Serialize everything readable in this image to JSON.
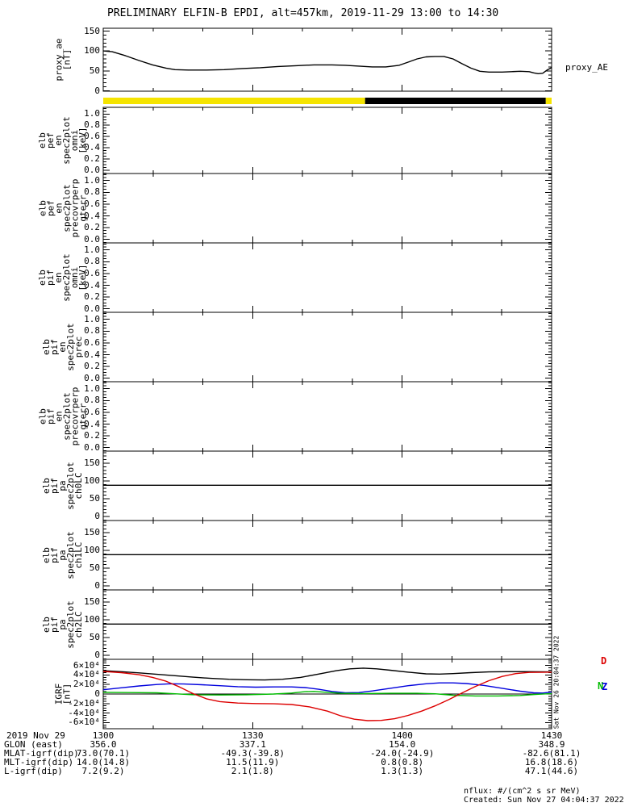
{
  "title": "PRELIMINARY ELFIN-B EPDI, alt=457km, 2019-11-29 13:00 to 14:30",
  "side_stamp": "Sat Nov 26 20:04:37 2022",
  "footer": {
    "nflux_units": "nflux: #/(cm^2 s sr MeV)",
    "created": "Created: Sun Nov 27 04:04:37 2022"
  },
  "colors": {
    "black": "#000000",
    "red": "#dd0000",
    "green": "#00bb00",
    "blue": "#0000dd",
    "yellow": "#f5e400",
    "background": "#ffffff"
  },
  "xaxis": {
    "date_label": "2019 Nov 29",
    "tick_labels": [
      "1300",
      "1330",
      "1400",
      "1430"
    ],
    "minor_tick_minutes": 10,
    "major_tick_minutes": 30
  },
  "bottom_rows": [
    {
      "label": "GLON (east)",
      "values": [
        "356.0",
        "337.1",
        "154.0",
        "348.9"
      ]
    },
    {
      "label": "MLAT-igrf(dip)",
      "values": [
        "73.0(70.1)",
        "-49.3(-39.8)",
        "-24.0(-24.9)",
        "-82.6(81.1)"
      ]
    },
    {
      "label": "MLT-igrf(dip)",
      "values": [
        "14.0(14.8)",
        "11.5(11.9)",
        "0.8(0.8)",
        "16.8(18.6)"
      ]
    },
    {
      "label": "L-igrf(dip)",
      "values": [
        "7.2(9.2)",
        "2.1(1.8)",
        "1.3(1.3)",
        "47.1(44.6)"
      ]
    }
  ],
  "chart_data": [
    {
      "type": "line",
      "name": "proxy_AE",
      "ylabel_lines": [
        "proxy_ae",
        "[nT]"
      ],
      "right_label": "proxy_AE",
      "ylim": [
        -1,
        157
      ],
      "yticks": [
        0,
        50,
        100,
        150
      ],
      "ytick_labels": [
        "0",
        "50",
        "100",
        "150"
      ],
      "minor_step": 10,
      "series": [
        {
          "name": "proxy_AE",
          "color": "#000000",
          "points": [
            [
              0,
              100
            ],
            [
              0.02,
              98
            ],
            [
              0.05,
              88
            ],
            [
              0.08,
              76
            ],
            [
              0.11,
              65
            ],
            [
              0.14,
              57
            ],
            [
              0.16,
              53
            ],
            [
              0.19,
              52
            ],
            [
              0.23,
              52
            ],
            [
              0.27,
              53
            ],
            [
              0.31,
              56
            ],
            [
              0.35,
              58
            ],
            [
              0.39,
              61
            ],
            [
              0.43,
              63
            ],
            [
              0.47,
              65
            ],
            [
              0.51,
              65
            ],
            [
              0.54,
              64
            ],
            [
              0.57,
              62
            ],
            [
              0.6,
              60
            ],
            [
              0.63,
              60
            ],
            [
              0.66,
              64
            ],
            [
              0.68,
              72
            ],
            [
              0.7,
              80
            ],
            [
              0.72,
              85
            ],
            [
              0.74,
              86
            ],
            [
              0.76,
              86
            ],
            [
              0.78,
              80
            ],
            [
              0.8,
              68
            ],
            [
              0.82,
              57
            ],
            [
              0.84,
              49
            ],
            [
              0.86,
              47
            ],
            [
              0.89,
              47
            ],
            [
              0.91,
              48
            ],
            [
              0.93,
              49
            ],
            [
              0.95,
              48
            ],
            [
              0.96,
              45
            ],
            [
              0.97,
              43
            ],
            [
              0.98,
              44
            ],
            [
              0.99,
              52
            ],
            [
              1,
              58
            ]
          ]
        }
      ]
    },
    {
      "type": "strip",
      "name": "sunlight-flag-bar",
      "segments": [
        {
          "from": 0.0,
          "to": 0.584,
          "color": "#f5e400",
          "meaning": "yellow"
        },
        {
          "from": 0.584,
          "to": 0.987,
          "color": "#000000",
          "meaning": "black"
        },
        {
          "from": 0.987,
          "to": 1.0,
          "color": "#f5e400",
          "meaning": "yellow"
        }
      ]
    },
    {
      "type": "panel",
      "name": "elb_pef_en_spec2plot_omni",
      "ylabel_lines": [
        "elb",
        "pef",
        "en",
        "spec2plot",
        "omni",
        "[keV]"
      ],
      "ylim": [
        -0.06,
        1.12
      ],
      "yticks": [
        0,
        0.2,
        0.4,
        0.6,
        0.8,
        1.0
      ],
      "ytick_labels": [
        "0.0",
        "0.2",
        "0.4",
        "0.6",
        "0.8",
        "1.0"
      ],
      "minor_step": 0.05,
      "series": []
    },
    {
      "type": "panel",
      "name": "elb_pef_en_spec2plot_precovrperp_gterr",
      "ylabel_lines": [
        "elb",
        "pef",
        "en",
        "spec2plot",
        "precovrperp",
        "gterr"
      ],
      "ylim": [
        -0.06,
        1.12
      ],
      "yticks": [
        0,
        0.2,
        0.4,
        0.6,
        0.8,
        1.0
      ],
      "ytick_labels": [
        "0.0",
        "0.2",
        "0.4",
        "0.6",
        "0.8",
        "1.0"
      ],
      "minor_step": 0.05,
      "series": []
    },
    {
      "type": "panel",
      "name": "elb_pif_en_spec2plot_omni",
      "ylabel_lines": [
        "elb",
        "pif",
        "en",
        "spec2plot",
        "omni",
        "[keV]"
      ],
      "ylim": [
        -0.06,
        1.12
      ],
      "yticks": [
        0,
        0.2,
        0.4,
        0.6,
        0.8,
        1.0
      ],
      "ytick_labels": [
        "0.0",
        "0.2",
        "0.4",
        "0.6",
        "0.8",
        "1.0"
      ],
      "minor_step": 0.05,
      "series": []
    },
    {
      "type": "panel",
      "name": "elb_pif_en_spec2plot_prec",
      "ylabel_lines": [
        "elb",
        "pif",
        "en",
        "spec2plot",
        "prec"
      ],
      "ylim": [
        -0.06,
        1.12
      ],
      "yticks": [
        0,
        0.2,
        0.4,
        0.6,
        0.8,
        1.0
      ],
      "ytick_labels": [
        "0.0",
        "0.2",
        "0.4",
        "0.6",
        "0.8",
        "1.0"
      ],
      "minor_step": 0.05,
      "series": []
    },
    {
      "type": "panel",
      "name": "elb_pif_en_spec2plot_precovrperp_gterr",
      "ylabel_lines": [
        "elb",
        "pif",
        "en",
        "spec2plot",
        "precovrperp",
        "gterr"
      ],
      "ylim": [
        -0.06,
        1.12
      ],
      "yticks": [
        0,
        0.2,
        0.4,
        0.6,
        0.8,
        1.0
      ],
      "ytick_labels": [
        "0.0",
        "0.2",
        "0.4",
        "0.6",
        "0.8",
        "1.0"
      ],
      "minor_step": 0.05,
      "series": []
    },
    {
      "type": "line",
      "name": "elb_pif_pa_spec2plot_ch0LC",
      "ylabel_lines": [
        "elb",
        "pif",
        "pa",
        "spec2plot",
        "ch0LC"
      ],
      "ylim": [
        -11,
        184
      ],
      "yticks": [
        0,
        50,
        100,
        150
      ],
      "ytick_labels": [
        "0",
        "50",
        "100",
        "150"
      ],
      "minor_step": 10,
      "series": [
        {
          "name": "loss-cone-line",
          "color": "#000000",
          "points": [
            [
              0,
              88
            ],
            [
              1,
              88
            ]
          ]
        }
      ]
    },
    {
      "type": "line",
      "name": "elb_pif_pa_spec2plot_ch1LC",
      "ylabel_lines": [
        "elb",
        "pif",
        "pa",
        "spec2plot",
        "ch1LC"
      ],
      "ylim": [
        -11,
        184
      ],
      "yticks": [
        0,
        50,
        100,
        150
      ],
      "ytick_labels": [
        "0",
        "50",
        "100",
        "150"
      ],
      "minor_step": 10,
      "series": [
        {
          "name": "loss-cone-line",
          "color": "#000000",
          "points": [
            [
              0,
              88
            ],
            [
              1,
              88
            ]
          ]
        }
      ]
    },
    {
      "type": "line",
      "name": "elb_pif_pa_spec2plot_ch2LC",
      "ylabel_lines": [
        "elb",
        "pif",
        "pa",
        "spec2plot",
        "ch2LC"
      ],
      "ylim": [
        -11,
        184
      ],
      "yticks": [
        0,
        50,
        100,
        150
      ],
      "ytick_labels": [
        "0",
        "50",
        "100",
        "150"
      ],
      "minor_step": 10,
      "series": [
        {
          "name": "loss-cone-line",
          "color": "#000000",
          "points": [
            [
              0,
              88
            ],
            [
              1,
              88
            ]
          ]
        }
      ]
    },
    {
      "type": "line",
      "name": "IGRF",
      "ylabel_lines": [
        "IGRF",
        "[nT]"
      ],
      "ylim": [
        -7.3,
        7.3
      ],
      "yticks": [
        -6,
        -4,
        -2,
        0,
        2,
        4,
        6
      ],
      "ytick_labels": [
        "-6×10⁴",
        "-4×10⁴",
        "-2×10⁴",
        "0",
        "2×10⁴",
        "4×10⁴",
        "6×10⁴"
      ],
      "minor_step": 0.5,
      "zero_line": true,
      "units_scale": "1e4 nT",
      "end_labels": [
        {
          "text": "D",
          "color": "#dd0000"
        },
        {
          "text": "N",
          "color": "#00bb00"
        },
        {
          "text": "Z",
          "color": "#0000dd"
        }
      ],
      "series": [
        {
          "name": "B-total",
          "color": "#000000",
          "points": [
            [
              0,
              4.9
            ],
            [
              0.04,
              4.7
            ],
            [
              0.08,
              4.45
            ],
            [
              0.12,
              4.15
            ],
            [
              0.16,
              3.85
            ],
            [
              0.2,
              3.55
            ],
            [
              0.24,
              3.3
            ],
            [
              0.28,
              3.1
            ],
            [
              0.32,
              3.0
            ],
            [
              0.36,
              2.95
            ],
            [
              0.4,
              3.1
            ],
            [
              0.44,
              3.5
            ],
            [
              0.48,
              4.2
            ],
            [
              0.52,
              4.9
            ],
            [
              0.55,
              5.3
            ],
            [
              0.58,
              5.45
            ],
            [
              0.61,
              5.3
            ],
            [
              0.64,
              5.0
            ],
            [
              0.68,
              4.6
            ],
            [
              0.72,
              4.25
            ],
            [
              0.75,
              4.2
            ],
            [
              0.78,
              4.3
            ],
            [
              0.82,
              4.5
            ],
            [
              0.86,
              4.65
            ],
            [
              0.9,
              4.7
            ],
            [
              0.95,
              4.7
            ],
            [
              1,
              4.65
            ]
          ]
        },
        {
          "name": "B-Z",
          "color": "#0000dd",
          "points": [
            [
              0,
              0.9
            ],
            [
              0.04,
              1.3
            ],
            [
              0.08,
              1.7
            ],
            [
              0.12,
              2.0
            ],
            [
              0.15,
              2.15
            ],
            [
              0.18,
              2.1
            ],
            [
              0.22,
              1.95
            ],
            [
              0.26,
              1.75
            ],
            [
              0.3,
              1.55
            ],
            [
              0.34,
              1.45
            ],
            [
              0.38,
              1.5
            ],
            [
              0.42,
              1.5
            ],
            [
              0.45,
              1.35
            ],
            [
              0.48,
              1.0
            ],
            [
              0.51,
              0.55
            ],
            [
              0.54,
              0.25
            ],
            [
              0.57,
              0.3
            ],
            [
              0.6,
              0.65
            ],
            [
              0.64,
              1.2
            ],
            [
              0.68,
              1.75
            ],
            [
              0.72,
              2.15
            ],
            [
              0.75,
              2.35
            ],
            [
              0.78,
              2.35
            ],
            [
              0.81,
              2.2
            ],
            [
              0.85,
              1.8
            ],
            [
              0.89,
              1.2
            ],
            [
              0.93,
              0.6
            ],
            [
              0.96,
              0.25
            ],
            [
              0.98,
              0.2
            ],
            [
              1,
              0.4
            ]
          ]
        },
        {
          "name": "B-N",
          "color": "#00bb00",
          "points": [
            [
              0,
              0.35
            ],
            [
              0.06,
              0.3
            ],
            [
              0.12,
              0.25
            ],
            [
              0.16,
              0.05
            ],
            [
              0.2,
              -0.15
            ],
            [
              0.26,
              -0.2
            ],
            [
              0.32,
              -0.15
            ],
            [
              0.38,
              0.0
            ],
            [
              0.42,
              0.2
            ],
            [
              0.45,
              0.5
            ],
            [
              0.47,
              0.55
            ],
            [
              0.5,
              0.35
            ],
            [
              0.53,
              0.15
            ],
            [
              0.58,
              0.1
            ],
            [
              0.64,
              0.15
            ],
            [
              0.7,
              0.15
            ],
            [
              0.74,
              0.05
            ],
            [
              0.78,
              -0.25
            ],
            [
              0.83,
              -0.4
            ],
            [
              0.88,
              -0.4
            ],
            [
              0.93,
              -0.3
            ],
            [
              0.97,
              -0.05
            ],
            [
              1,
              0.1
            ]
          ]
        },
        {
          "name": "B-D",
          "color": "#dd0000",
          "points": [
            [
              0,
              4.75
            ],
            [
              0.04,
              4.5
            ],
            [
              0.08,
              4.05
            ],
            [
              0.11,
              3.5
            ],
            [
              0.14,
              2.7
            ],
            [
              0.17,
              1.5
            ],
            [
              0.2,
              0.1
            ],
            [
              0.23,
              -1.0
            ],
            [
              0.26,
              -1.6
            ],
            [
              0.3,
              -1.9
            ],
            [
              0.34,
              -2.0
            ],
            [
              0.38,
              -2.05
            ],
            [
              0.42,
              -2.2
            ],
            [
              0.46,
              -2.7
            ],
            [
              0.5,
              -3.6
            ],
            [
              0.53,
              -4.6
            ],
            [
              0.56,
              -5.3
            ],
            [
              0.59,
              -5.6
            ],
            [
              0.62,
              -5.55
            ],
            [
              0.65,
              -5.2
            ],
            [
              0.68,
              -4.5
            ],
            [
              0.71,
              -3.6
            ],
            [
              0.74,
              -2.5
            ],
            [
              0.77,
              -1.2
            ],
            [
              0.8,
              0.2
            ],
            [
              0.83,
              1.6
            ],
            [
              0.86,
              2.8
            ],
            [
              0.89,
              3.7
            ],
            [
              0.92,
              4.3
            ],
            [
              0.95,
              4.55
            ],
            [
              1,
              4.6
            ]
          ]
        }
      ]
    }
  ]
}
